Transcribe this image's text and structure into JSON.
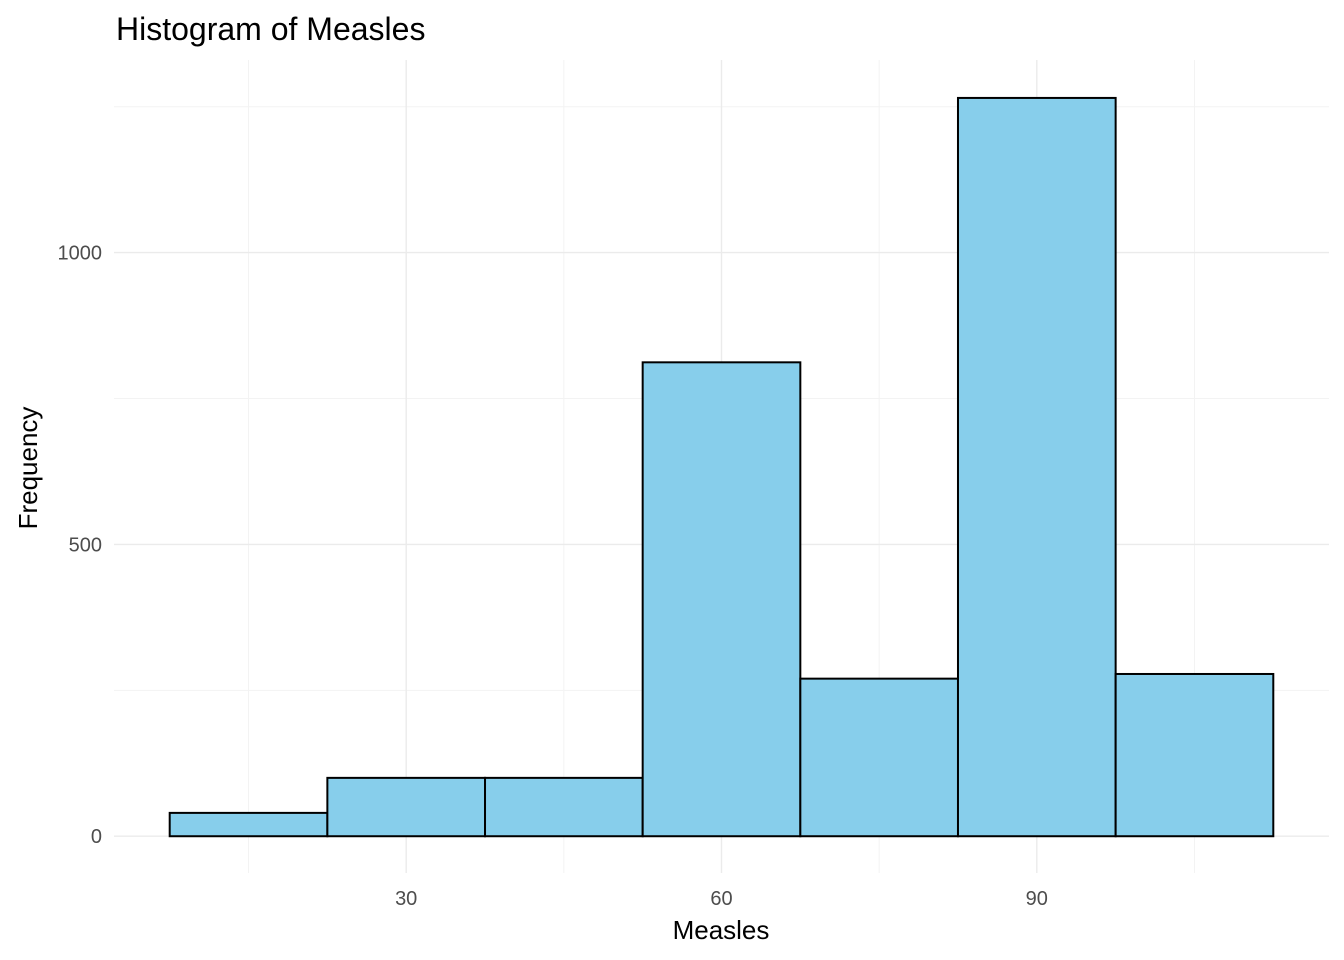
{
  "chart_data": {
    "type": "bar",
    "title": "Histogram of Measles",
    "xlabel": "Measles",
    "ylabel": "Frequency",
    "bins": [
      {
        "x0": 7.5,
        "x1": 22.5,
        "count": 40
      },
      {
        "x0": 22.5,
        "x1": 37.5,
        "count": 100
      },
      {
        "x0": 37.5,
        "x1": 52.5,
        "count": 100
      },
      {
        "x0": 52.5,
        "x1": 67.5,
        "count": 812
      },
      {
        "x0": 67.5,
        "x1": 82.5,
        "count": 270
      },
      {
        "x0": 82.5,
        "x1": 97.5,
        "count": 1265
      },
      {
        "x0": 97.5,
        "x1": 112.5,
        "count": 278
      }
    ],
    "xlim": [
      2.2,
      117.8
    ],
    "ylim": [
      -63,
      1330
    ],
    "xticks": [
      30,
      60,
      90
    ],
    "xtick_labels": [
      "30",
      "60",
      "90"
    ],
    "yticks": [
      0,
      500,
      1000
    ],
    "ytick_labels": [
      "0",
      "500",
      "1000"
    ],
    "grid": true,
    "bar_fill": "#87ceeb",
    "bar_outline": "#000000"
  }
}
